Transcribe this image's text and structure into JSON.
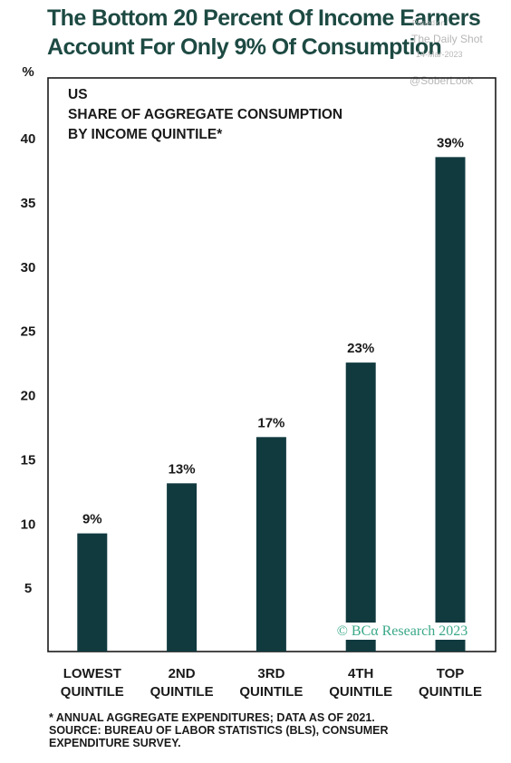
{
  "title_line1": "The Bottom 20 Percent Of Income Earners",
  "title_line2": "Account For Only 9% Of Consumption",
  "watermark": {
    "publisher": "Posted on",
    "name": "The Daily Shot",
    "date": "14-Mar-2023",
    "handle": "@SoberLook"
  },
  "credit": "© BCα Research 2023",
  "footnotes": [
    "* ANNUAL AGGREGATE EXPENDITURES; DATA AS OF 2021.",
    "SOURCE: BUREAU OF LABOR STATISTICS (BLS), CONSUMER",
    "EXPENDITURE SURVEY."
  ],
  "colors": {
    "bar": "#113a3f",
    "title": "#1d4a43",
    "credit": "#3aa888",
    "frame": "#1a1a1a"
  },
  "chart_data": {
    "type": "bar",
    "inset_title": [
      "US",
      "SHARE OF AGGREGATE CONSUMPTION",
      "BY INCOME QUINTILE*"
    ],
    "ylabel": "%",
    "ylim": [
      0,
      40.5
    ],
    "yticks": [
      5,
      10,
      15,
      20,
      25,
      30,
      35,
      40
    ],
    "categories": [
      [
        "LOWEST",
        "QUINTILE"
      ],
      [
        "2ND",
        "QUINTILE"
      ],
      [
        "3RD",
        "QUINTILE"
      ],
      [
        "4TH",
        "QUINTILE"
      ],
      [
        "TOP",
        "QUINTILE"
      ]
    ],
    "values": [
      9.2,
      13.1,
      16.7,
      22.5,
      38.5
    ],
    "data_labels": [
      "9%",
      "13%",
      "17%",
      "23%",
      "39%"
    ],
    "grid": false,
    "legend": "none"
  }
}
